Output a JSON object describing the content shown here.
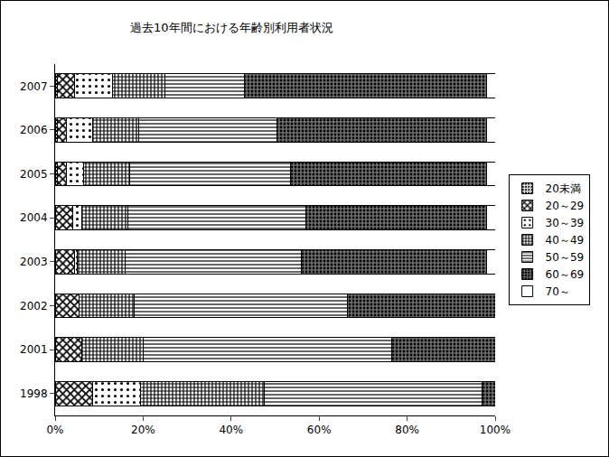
{
  "chart_data": {
    "type": "bar",
    "title": "過去10年間における年齢別利用者状況",
    "orientation": "horizontal",
    "stacked": true,
    "grid": false,
    "legend": "right",
    "categories": [
      "1998",
      "2001",
      "2002",
      "2003",
      "2004",
      "2005",
      "2006",
      "2007"
    ],
    "xlim": [
      0,
      100
    ],
    "xticks": [
      {
        "value": 0,
        "label": "0%"
      },
      {
        "value": 20,
        "label": "20%"
      },
      {
        "value": 40,
        "label": "40%"
      },
      {
        "value": 60,
        "label": "60%"
      },
      {
        "value": 80,
        "label": "80%"
      },
      {
        "value": 100,
        "label": "100%"
      }
    ],
    "series": [
      {
        "name": "20未満",
        "color": "#e6e6e6",
        "values": [
          0,
          0,
          0,
          0,
          0,
          0.5,
          0.5,
          0.5
        ]
      },
      {
        "name": "20～29",
        "color": "#ffffff",
        "values": [
          8.5,
          6,
          5.5,
          4.5,
          4,
          2,
          2,
          4
        ]
      },
      {
        "name": "30～39",
        "color": "#ffffff",
        "values": [
          11,
          0,
          0,
          0.5,
          2,
          4,
          6,
          8.5
        ]
      },
      {
        "name": "40～49",
        "color": "#ffffff",
        "values": [
          28,
          14,
          12.5,
          11,
          10.5,
          10.5,
          10.5,
          12
        ]
      },
      {
        "name": "50～59",
        "color": "#ffffff",
        "values": [
          49.5,
          56.5,
          48.5,
          40,
          40.5,
          36.5,
          31.5,
          18
        ]
      },
      {
        "name": "60～69",
        "color": "#707070",
        "values": [
          3,
          23.5,
          33.5,
          42,
          41,
          44.5,
          47.5,
          55
        ]
      },
      {
        "name": "70～",
        "color": "#ffffff",
        "values": [
          0,
          0,
          0,
          2,
          2,
          2,
          2,
          2
        ]
      }
    ]
  }
}
